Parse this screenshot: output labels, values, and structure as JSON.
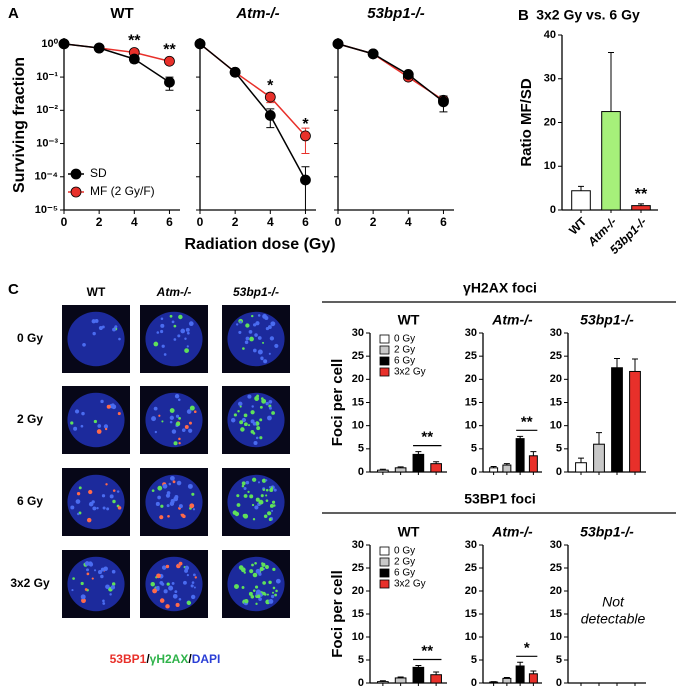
{
  "figure": {
    "panel_labels": [
      "A",
      "B",
      "C"
    ],
    "surviving_fraction_label": "Surviving fraction",
    "radiation_dose_label": "Radiation dose (Gy)",
    "section_titles": [
      "γH2AX foci",
      "53BP1 foci"
    ],
    "image_columns": [
      "WT",
      "Atm-/-",
      "53bp1-/-"
    ],
    "image_rows": [
      "0 Gy",
      "2 Gy",
      "6 Gy",
      "3x2 Gy"
    ],
    "stain_label": [
      "53BP1",
      "/",
      "γH2AX",
      "/",
      "DAPI"
    ],
    "stain_colors": [
      "#e8302a",
      "#000000",
      "#2fb34a",
      "#000000",
      "#2b3fd6"
    ]
  },
  "chart_data": [
    {
      "type": "line",
      "title": "WT",
      "x": [
        0,
        2,
        4,
        6
      ],
      "xlim": [
        0,
        6.6
      ],
      "xticks": [
        0,
        2,
        4,
        6
      ],
      "ylim": [
        1e-05,
        1.5
      ],
      "log_y": true,
      "yticks": [
        {
          "value": 1,
          "label": "10⁰"
        },
        {
          "value": 0.1,
          "label": "10⁻¹"
        },
        {
          "value": 0.01,
          "label": "10⁻²"
        },
        {
          "value": 0.001,
          "label": "10⁻³"
        },
        {
          "value": 0.0001,
          "label": "10⁻⁴"
        },
        {
          "value": 1e-05,
          "label": "10⁻⁵"
        }
      ],
      "series": [
        {
          "name": "SD",
          "color": "#000000",
          "values": [
            1,
            0.75,
            0.35,
            0.07
          ],
          "errors": [
            0,
            0,
            0.08,
            0.03
          ]
        },
        {
          "name": "MF (2 Gy/F)",
          "color": "#e8302a",
          "values": [
            1,
            0.75,
            0.55,
            0.3
          ]
        }
      ],
      "annotations": [
        {
          "x": 4,
          "text": "**"
        },
        {
          "x": 6,
          "text": "**"
        }
      ],
      "annotation_color": "#e8302a",
      "legend": "lower left"
    },
    {
      "type": "line",
      "title": "Atm-/-",
      "title_italic": true,
      "x": [
        0,
        2,
        4,
        6
      ],
      "xlim": [
        0,
        6.6
      ],
      "xticks": [
        0,
        2,
        4,
        6
      ],
      "ylim": [
        1e-05,
        1.5
      ],
      "log_y": true,
      "yticks": [
        1,
        0.1,
        0.01,
        0.001,
        0.0001,
        1e-05
      ],
      "series": [
        {
          "color": "#000000",
          "values": [
            1,
            0.14,
            0.007,
            8e-05
          ],
          "errors": [
            0,
            0.03,
            0.004,
            0.00012
          ]
        },
        {
          "color": "#e8302a",
          "values": [
            1,
            0.14,
            0.025,
            0.0017
          ],
          "errors": [
            0,
            0,
            0.008,
            0.0012
          ]
        }
      ],
      "annotations": [
        {
          "x": 4,
          "text": "*"
        },
        {
          "x": 6,
          "text": "*"
        }
      ],
      "annotation_color": "#e8302a"
    },
    {
      "type": "line",
      "title": "53bp1-/-",
      "title_italic": true,
      "x": [
        0,
        2,
        4,
        6
      ],
      "xlim": [
        0,
        6.6
      ],
      "xticks": [
        0,
        2,
        4,
        6
      ],
      "ylim": [
        1e-05,
        1.5
      ],
      "log_y": true,
      "yticks": [
        1,
        0.1,
        0.01,
        0.001,
        0.0001,
        1e-05
      ],
      "series": [
        {
          "color": "#000000",
          "values": [
            1,
            0.5,
            0.12,
            0.018
          ],
          "errors": [
            0,
            0,
            0.02,
            0.009
          ]
        },
        {
          "color": "#e8302a",
          "values": [
            1,
            0.5,
            0.1,
            0.02
          ]
        }
      ]
    },
    {
      "type": "bar",
      "title": "3x2 Gy vs. 6 Gy",
      "y_label": "Ratio MF/SD",
      "categories": [
        "WT",
        "Atm-/-",
        "53bp1-/-"
      ],
      "values": [
        4.4,
        22.5,
        1.0
      ],
      "errors": [
        1.0,
        13.5,
        0.4
      ],
      "colors": [
        "#ffffff",
        "#a6f07a",
        "#e8302a"
      ],
      "ylim": [
        0,
        40
      ],
      "yticks": [
        0,
        10,
        20,
        30,
        40
      ],
      "value_annotations": [
        null,
        null,
        "**"
      ]
    },
    {
      "type": "bar",
      "title": "WT",
      "y_label": "Foci per cell",
      "categories": [
        "0 Gy",
        "2 Gy",
        "6 Gy",
        "3x2 Gy"
      ],
      "legend": "upper left",
      "values": [
        0.4,
        0.9,
        3.8,
        1.8
      ],
      "errors": [
        0.2,
        0.2,
        0.6,
        0.4
      ],
      "colors": [
        "#ffffff",
        "#c8c8c8",
        "#000000",
        "#e8302a"
      ],
      "ylim": [
        0,
        30
      ],
      "yticks": [
        0,
        5,
        10,
        15,
        20,
        25,
        30
      ],
      "bracket": "**"
    },
    {
      "type": "bar",
      "title": "Atm-/-",
      "title_italic": true,
      "values": [
        0.9,
        1.5,
        7.2,
        3.5
      ],
      "errors": [
        0.3,
        0.3,
        0.5,
        0.9
      ],
      "colors": [
        "#ffffff",
        "#c8c8c8",
        "#000000",
        "#e8302a"
      ],
      "ylim": [
        0,
        30
      ],
      "yticks": [
        0,
        5,
        10,
        15,
        20,
        25,
        30
      ],
      "bracket": "**"
    },
    {
      "type": "bar",
      "title": "53bp1-/-",
      "title_italic": true,
      "values": [
        2,
        6,
        22.5,
        21.7
      ],
      "errors": [
        1,
        2.5,
        2,
        2.7
      ],
      "colors": [
        "#ffffff",
        "#c8c8c8",
        "#000000",
        "#e8302a"
      ],
      "ylim": [
        0,
        30
      ],
      "yticks": [
        0,
        5,
        10,
        15,
        20,
        25,
        30
      ]
    },
    {
      "type": "bar",
      "title": "WT",
      "y_label": "Foci per cell",
      "categories": [
        "0 Gy",
        "2 Gy",
        "6 Gy",
        "3x2 Gy"
      ],
      "legend": "upper left",
      "values": [
        0.3,
        1.1,
        3.4,
        1.8
      ],
      "errors": [
        0.2,
        0.2,
        0.4,
        0.6
      ],
      "colors": [
        "#ffffff",
        "#c8c8c8",
        "#000000",
        "#e8302a"
      ],
      "ylim": [
        0,
        30
      ],
      "yticks": [
        0,
        5,
        10,
        15,
        20,
        25,
        30
      ],
      "bracket": "**"
    },
    {
      "type": "bar",
      "title": "Atm-/-",
      "title_italic": true,
      "values": [
        0.2,
        1.0,
        3.7,
        2.0
      ],
      "errors": [
        0.1,
        0.2,
        0.8,
        0.6
      ],
      "colors": [
        "#ffffff",
        "#c8c8c8",
        "#000000",
        "#e8302a"
      ],
      "ylim": [
        0,
        30
      ],
      "yticks": [
        0,
        5,
        10,
        15,
        20,
        25,
        30
      ],
      "bracket": "*"
    },
    {
      "type": "bar",
      "title": "53bp1-/-",
      "title_italic": true,
      "values": [],
      "ylim": [
        0,
        30
      ],
      "yticks": [
        0,
        5,
        10,
        15,
        20,
        25,
        30
      ],
      "note": [
        "Not",
        "detectable"
      ]
    }
  ]
}
